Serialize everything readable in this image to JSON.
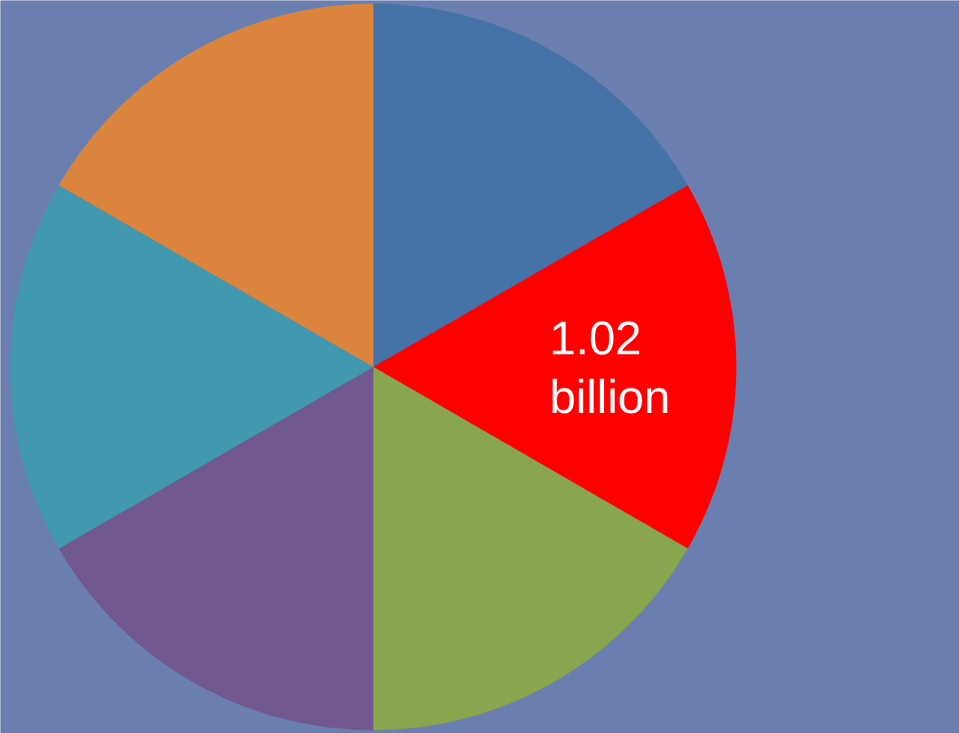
{
  "chart_data": {
    "type": "pie",
    "categories": [
      null,
      null,
      null,
      null,
      null,
      null
    ],
    "values": [
      1.02,
      1.02,
      1.02,
      1.02,
      1.02,
      1.02
    ],
    "colors": [
      "#4572a7",
      "#ff0000",
      "#89a54e",
      "#71588f",
      "#4198af",
      "#db843d"
    ],
    "value_labels": [
      null,
      "1.02 billion",
      null,
      null,
      null,
      null
    ]
  }
}
